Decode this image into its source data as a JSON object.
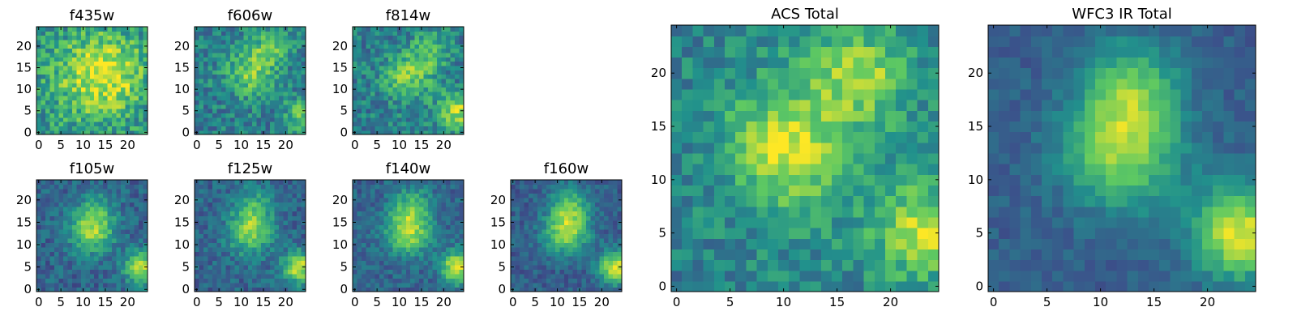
{
  "figure": {
    "colormap": "viridis",
    "colormap_stops": [
      "#440154",
      "#3b528b",
      "#21918c",
      "#5ec962",
      "#fde725"
    ],
    "grid": false
  },
  "chart_data": [
    {
      "type": "heatmap",
      "title": "f435w",
      "xlabel": "",
      "ylabel": "",
      "xlim": [
        -0.5,
        24.5
      ],
      "ylim": [
        -0.5,
        24.5
      ],
      "xticks": [
        "0",
        "5",
        "10",
        "15",
        "20"
      ],
      "yticks": [
        "0",
        "5",
        "10",
        "15",
        "20"
      ],
      "grid_size": 25,
      "noise": 0.2,
      "components": [
        {
          "x": 15,
          "y": 14,
          "sigma": 6,
          "amp": 0.35
        },
        {
          "x": 12,
          "y": 12,
          "sigma": 10,
          "amp": 0.2
        }
      ],
      "background": 0.45
    },
    {
      "type": "heatmap",
      "title": "f606w",
      "xlabel": "",
      "ylabel": "",
      "xlim": [
        -0.5,
        24.5
      ],
      "ylim": [
        -0.5,
        24.5
      ],
      "xticks": [
        "0",
        "5",
        "10",
        "15",
        "20"
      ],
      "yticks": [
        "0",
        "5",
        "10",
        "15",
        "20"
      ],
      "grid_size": 25,
      "noise": 0.17,
      "components": [
        {
          "x": 12,
          "y": 14,
          "sigma": 4,
          "amp": 0.35
        },
        {
          "x": 17,
          "y": 20,
          "sigma": 3,
          "amp": 0.3
        },
        {
          "x": 24,
          "y": 4,
          "sigma": 3,
          "amp": 0.3
        }
      ],
      "background": 0.42
    },
    {
      "type": "heatmap",
      "title": "f814w",
      "xlabel": "",
      "ylabel": "",
      "xlim": [
        -0.5,
        24.5
      ],
      "ylim": [
        -0.5,
        24.5
      ],
      "xticks": [
        "0",
        "5",
        "10",
        "15",
        "20"
      ],
      "yticks": [
        "0",
        "5",
        "10",
        "15",
        "20"
      ],
      "grid_size": 25,
      "noise": 0.17,
      "components": [
        {
          "x": 12,
          "y": 13,
          "sigma": 4,
          "amp": 0.35
        },
        {
          "x": 17,
          "y": 19,
          "sigma": 3,
          "amp": 0.25
        },
        {
          "x": 23,
          "y": 5,
          "sigma": 3,
          "amp": 0.45
        }
      ],
      "background": 0.42
    },
    {
      "type": "heatmap",
      "title": "f105w",
      "xlabel": "",
      "ylabel": "",
      "xlim": [
        -0.5,
        24.5
      ],
      "ylim": [
        -0.5,
        24.5
      ],
      "xticks": [
        "0",
        "5",
        "10",
        "15",
        "20"
      ],
      "yticks": [
        "0",
        "5",
        "10",
        "15",
        "20"
      ],
      "grid_size": 25,
      "noise": 0.12,
      "components": [
        {
          "x": 12,
          "y": 13,
          "sigma": 3.5,
          "amp": 0.5
        },
        {
          "x": 23,
          "y": 5,
          "sigma": 2.5,
          "amp": 0.6
        },
        {
          "x": 13,
          "y": 18,
          "sigma": 3,
          "amp": 0.2
        }
      ],
      "background": 0.32
    },
    {
      "type": "heatmap",
      "title": "f125w",
      "xlabel": "",
      "ylabel": "",
      "xlim": [
        -0.5,
        24.5
      ],
      "ylim": [
        -0.5,
        24.5
      ],
      "xticks": [
        "0",
        "5",
        "10",
        "15",
        "20"
      ],
      "yticks": [
        "0",
        "5",
        "10",
        "15",
        "20"
      ],
      "grid_size": 25,
      "noise": 0.12,
      "components": [
        {
          "x": 12,
          "y": 13,
          "sigma": 3.5,
          "amp": 0.5
        },
        {
          "x": 23,
          "y": 5,
          "sigma": 2.5,
          "amp": 0.6
        },
        {
          "x": 13,
          "y": 19,
          "sigma": 3,
          "amp": 0.25
        }
      ],
      "background": 0.32
    },
    {
      "type": "heatmap",
      "title": "f140w",
      "xlabel": "",
      "ylabel": "",
      "xlim": [
        -0.5,
        24.5
      ],
      "ylim": [
        -0.5,
        24.5
      ],
      "xticks": [
        "0",
        "5",
        "10",
        "15",
        "20"
      ],
      "yticks": [
        "0",
        "5",
        "10",
        "15",
        "20"
      ],
      "grid_size": 25,
      "noise": 0.11,
      "components": [
        {
          "x": 12,
          "y": 13,
          "sigma": 3.5,
          "amp": 0.55
        },
        {
          "x": 23,
          "y": 5,
          "sigma": 2.5,
          "amp": 0.65
        },
        {
          "x": 13,
          "y": 19,
          "sigma": 3,
          "amp": 0.3
        }
      ],
      "background": 0.32
    },
    {
      "type": "heatmap",
      "title": "f160w",
      "xlabel": "",
      "ylabel": "",
      "xlim": [
        -0.5,
        24.5
      ],
      "ylim": [
        -0.5,
        24.5
      ],
      "xticks": [
        "0",
        "5",
        "10",
        "15",
        "20"
      ],
      "yticks": [
        "0",
        "5",
        "10",
        "15",
        "20"
      ],
      "grid_size": 25,
      "noise": 0.1,
      "components": [
        {
          "x": 12,
          "y": 13,
          "sigma": 3.5,
          "amp": 0.55
        },
        {
          "x": 23,
          "y": 5,
          "sigma": 2.5,
          "amp": 0.65
        },
        {
          "x": 13,
          "y": 19,
          "sigma": 3,
          "amp": 0.35
        }
      ],
      "background": 0.3
    },
    {
      "type": "heatmap",
      "title": "ACS Total",
      "xlabel": "",
      "ylabel": "",
      "xlim": [
        -0.5,
        24.5
      ],
      "ylim": [
        -0.5,
        24.5
      ],
      "xticks": [
        "0",
        "5",
        "10",
        "15",
        "20"
      ],
      "yticks": [
        "0",
        "5",
        "10",
        "15",
        "20"
      ],
      "grid_size": 25,
      "noise": 0.14,
      "components": [
        {
          "x": 10,
          "y": 13,
          "sigma": 3.5,
          "amp": 0.4
        },
        {
          "x": 17,
          "y": 20,
          "sigma": 3,
          "amp": 0.35
        },
        {
          "x": 23,
          "y": 5,
          "sigma": 3,
          "amp": 0.45
        },
        {
          "x": 14,
          "y": 14,
          "sigma": 8,
          "amp": 0.15
        }
      ],
      "background": 0.42
    },
    {
      "type": "heatmap",
      "title": "WFC3 IR Total",
      "xlabel": "",
      "ylabel": "",
      "xlim": [
        -0.5,
        24.5
      ],
      "ylim": [
        -0.5,
        24.5
      ],
      "xticks": [
        "0",
        "5",
        "10",
        "15",
        "20"
      ],
      "yticks": [
        "0",
        "5",
        "10",
        "15",
        "20"
      ],
      "grid_size": 25,
      "noise": 0.07,
      "components": [
        {
          "x": 12,
          "y": 13,
          "sigma": 3.8,
          "amp": 0.55
        },
        {
          "x": 23,
          "y": 5,
          "sigma": 3,
          "amp": 0.65
        },
        {
          "x": 13,
          "y": 19,
          "sigma": 3,
          "amp": 0.35
        }
      ],
      "background": 0.3
    }
  ]
}
